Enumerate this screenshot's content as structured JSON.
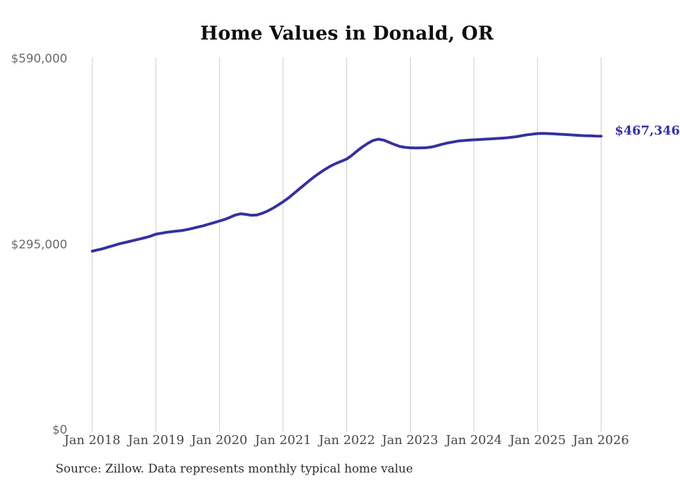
{
  "title": "Home Values in Donald, OR",
  "source_note": "Source: Zillow. Data represents monthly typical home value",
  "colors": {
    "line": "#3530a0",
    "grid": "#cbcbcb",
    "title_text": "#0f0f0f",
    "y_label_text": "#6a6b6e",
    "x_label_text": "#454547",
    "source_text": "#2d2d2d",
    "background": "#ffffff"
  },
  "chart_data": {
    "type": "line",
    "title": "Home Values in Donald, OR",
    "xlabel": "",
    "ylabel": "",
    "ylim": [
      0,
      590000
    ],
    "y_ticks": [
      0,
      295000,
      590000
    ],
    "y_tick_labels": [
      "$0",
      "$295,000",
      "$590,000"
    ],
    "x_tick_labels": [
      "Jan 2018",
      "Jan 2019",
      "Jan 2020",
      "Jan 2021",
      "Jan 2022",
      "Jan 2023",
      "Jan 2024",
      "Jan 2025",
      "Jan 2026"
    ],
    "grid": "vertical-only",
    "legend": "none",
    "final_value": 467346,
    "final_value_label": "$467,346",
    "series": [
      {
        "name": "Typical home value (monthly)",
        "start_month": "2018-01",
        "end_month": "2026-01",
        "interval_months": 1,
        "values": [
          284500,
          286500,
          288500,
          291000,
          293500,
          296000,
          298000,
          300000,
          302000,
          304000,
          306000,
          308500,
          311500,
          313000,
          314500,
          315500,
          316500,
          317500,
          319000,
          321000,
          323000,
          325000,
          327500,
          330000,
          332500,
          335000,
          338500,
          342000,
          344000,
          343000,
          341500,
          342000,
          344500,
          348000,
          352500,
          357500,
          363000,
          369000,
          376000,
          383000,
          390000,
          397000,
          403500,
          409500,
          415000,
          420000,
          424000,
          427500,
          431000,
          437000,
          444000,
          450500,
          456000,
          460500,
          462500,
          461000,
          457500,
          454000,
          451000,
          449500,
          448800,
          448500,
          448700,
          449000,
          450000,
          452000,
          454500,
          456500,
          458000,
          459500,
          460300,
          461000,
          461500,
          462000,
          462500,
          463000,
          463500,
          464000,
          464500,
          465500,
          466500,
          468000,
          469500,
          470500,
          471500,
          471800,
          471500,
          471000,
          470500,
          470000,
          469500,
          469000,
          468500,
          468000,
          467800,
          467500,
          467346
        ]
      }
    ]
  }
}
